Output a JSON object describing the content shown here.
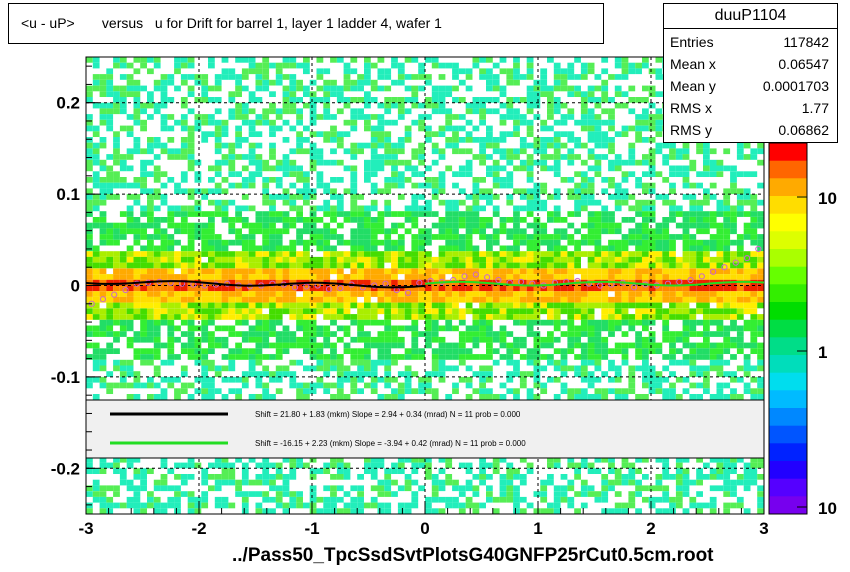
{
  "title": "<u - uP>       versus   u for Drift for barrel 1, layer 1 ladder 4, wafer 1",
  "stats": {
    "name": "duuP1104",
    "rows": [
      {
        "key": "Entries",
        "value": "117842"
      },
      {
        "key": "Mean x",
        "value": "0.06547"
      },
      {
        "key": "Mean y",
        "value": "0.0001703"
      },
      {
        "key": "RMS x",
        "value": "1.77"
      },
      {
        "key": "RMS y",
        "value": "0.06862"
      }
    ]
  },
  "footer": "../Pass50_TpcSsdSvtPlotsG40GNFP25rCut0.5cm.root",
  "colors": {
    "black_fit": "#000000",
    "green_fit": "#22dd22",
    "profile_marker": "#cc66cc"
  },
  "chart_data": {
    "type": "heatmap",
    "xlim": [
      -3,
      3
    ],
    "ylim": [
      -0.25,
      0.25
    ],
    "x_ticks": [
      -3,
      -2,
      -1,
      0,
      1,
      2,
      3
    ],
    "x_tick_labels": [
      "-3",
      "-2",
      "-1",
      "0",
      "1",
      "2",
      "3"
    ],
    "y_ticks": [
      -0.2,
      -0.1,
      0,
      0.1,
      0.2
    ],
    "y_tick_labels": [
      "-0.2",
      "-0.1",
      "0",
      "0.1",
      "0.2"
    ],
    "z_scale": "log",
    "z_tick_labels": [
      "10",
      "1",
      "10"
    ],
    "grid": true,
    "fits": [
      {
        "text": "Shift =    21.80 + 1.83 (mkm) Slope =     2.94 + 0.34 (mrad)  N = 11 prob = 0.000",
        "color": "#000000",
        "x_range": [
          -3,
          0
        ]
      },
      {
        "text": "Shift =   -16.15 + 2.23 (mkm) Slope =    -3.94 + 0.42 (mrad)  N = 11 prob = 0.000",
        "color": "#22dd22",
        "x_range": [
          0,
          3
        ]
      }
    ],
    "profile": {
      "x": [
        -2.95,
        -2.85,
        -2.75,
        -2.65,
        -2.55,
        -2.45,
        -2.35,
        -2.25,
        -2.15,
        -2.05,
        -1.95,
        -1.85,
        -1.75,
        -1.65,
        -1.55,
        -1.45,
        -1.35,
        -1.25,
        -1.15,
        -1.05,
        -0.95,
        -0.85,
        -0.75,
        -0.65,
        -0.55,
        -0.45,
        -0.35,
        -0.25,
        -0.15,
        -0.05,
        0.05,
        0.15,
        0.25,
        0.35,
        0.45,
        0.55,
        0.65,
        0.75,
        0.85,
        0.95,
        1.05,
        1.15,
        1.25,
        1.35,
        1.45,
        1.55,
        1.65,
        1.75,
        1.85,
        1.95,
        2.05,
        2.15,
        2.25,
        2.35,
        2.45,
        2.55,
        2.65,
        2.75,
        2.85,
        2.95
      ],
      "y": [
        -0.02,
        -0.015,
        -0.01,
        -0.005,
        0.002,
        0.003,
        0.004,
        0.003,
        0.002,
        0.001,
        0.0,
        0.001,
        0.002,
        0.0,
        -0.001,
        0.0,
        0.002,
        0.001,
        -0.002,
        -0.001,
        0.0,
        -0.004,
        -0.003,
        0.001,
        -0.002,
        0.0,
        0.002,
        -0.005,
        -0.008,
        0.003,
        0.005,
        0.004,
        0.006,
        0.01,
        0.012,
        0.009,
        0.006,
        0.003,
        0.004,
        0.002,
        0.0,
        0.003,
        0.004,
        0.005,
        0.002,
        0.0,
        0.001,
        0.003,
        -0.002,
        0.001,
        0.0,
        0.002,
        0.004,
        0.006,
        0.01,
        0.015,
        0.02,
        0.025,
        0.03,
        0.04
      ]
    }
  }
}
